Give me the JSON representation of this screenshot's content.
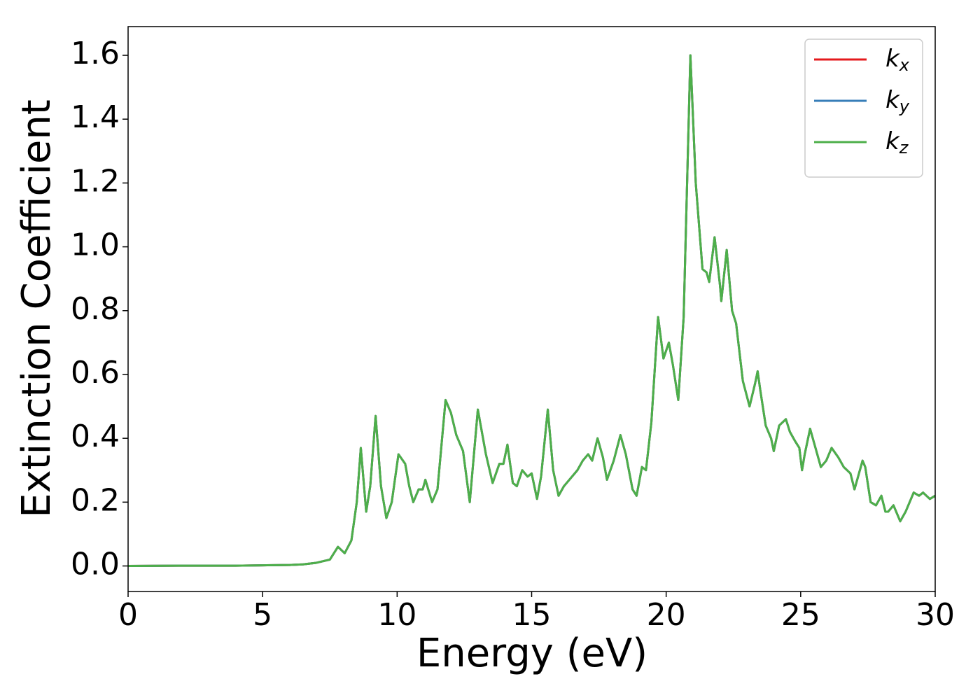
{
  "chart_data": {
    "type": "line",
    "x_label": "Energy (eV)",
    "y_label": "Extinction Coefficient",
    "x": [
      0,
      2,
      4,
      5,
      6,
      6.5,
      7,
      7.5,
      7.8,
      8.05,
      8.3,
      8.5,
      8.65,
      8.85,
      9.0,
      9.2,
      9.4,
      9.6,
      9.8,
      10.05,
      10.3,
      10.45,
      10.6,
      10.8,
      10.95,
      11.05,
      11.3,
      11.5,
      11.8,
      12.0,
      12.2,
      12.45,
      12.7,
      13.0,
      13.3,
      13.55,
      13.8,
      13.95,
      14.1,
      14.3,
      14.45,
      14.65,
      14.85,
      15.0,
      15.2,
      15.35,
      15.6,
      15.8,
      16.0,
      16.2,
      16.4,
      16.7,
      16.9,
      17.1,
      17.25,
      17.45,
      17.65,
      17.8,
      18.05,
      18.3,
      18.5,
      18.75,
      18.9,
      19.1,
      19.25,
      19.45,
      19.7,
      19.9,
      20.1,
      20.25,
      20.45,
      20.65,
      20.9,
      21.1,
      21.35,
      21.5,
      21.6,
      21.8,
      22.0,
      22.05,
      22.25,
      22.45,
      22.6,
      22.85,
      23.1,
      23.3,
      23.4,
      23.5,
      23.7,
      23.9,
      24.0,
      24.2,
      24.45,
      24.6,
      24.8,
      24.95,
      25.05,
      25.15,
      25.35,
      25.55,
      25.75,
      25.95,
      26.15,
      26.4,
      26.6,
      26.85,
      27.0,
      27.3,
      27.4,
      27.6,
      27.8,
      28.0,
      28.15,
      28.25,
      28.45,
      28.7,
      28.9,
      29.2,
      29.4,
      29.55,
      29.8,
      30
    ],
    "series": [
      {
        "name": "kx",
        "color": "#e41a1c",
        "values": [
          0,
          0.001,
          0.001,
          0.002,
          0.003,
          0.005,
          0.01,
          0.02,
          0.06,
          0.04,
          0.08,
          0.2,
          0.37,
          0.17,
          0.25,
          0.47,
          0.25,
          0.15,
          0.2,
          0.35,
          0.32,
          0.25,
          0.2,
          0.24,
          0.24,
          0.27,
          0.2,
          0.24,
          0.52,
          0.48,
          0.41,
          0.36,
          0.2,
          0.49,
          0.35,
          0.26,
          0.32,
          0.32,
          0.38,
          0.26,
          0.25,
          0.3,
          0.28,
          0.29,
          0.21,
          0.28,
          0.49,
          0.3,
          0.22,
          0.25,
          0.27,
          0.3,
          0.33,
          0.35,
          0.33,
          0.4,
          0.34,
          0.27,
          0.33,
          0.41,
          0.35,
          0.24,
          0.22,
          0.31,
          0.3,
          0.45,
          0.78,
          0.65,
          0.7,
          0.63,
          0.52,
          0.78,
          1.6,
          1.2,
          0.93,
          0.92,
          0.89,
          1.03,
          0.88,
          0.83,
          0.99,
          0.8,
          0.76,
          0.58,
          0.5,
          0.57,
          0.61,
          0.55,
          0.44,
          0.4,
          0.36,
          0.44,
          0.46,
          0.42,
          0.39,
          0.37,
          0.3,
          0.35,
          0.43,
          0.37,
          0.31,
          0.33,
          0.37,
          0.34,
          0.31,
          0.29,
          0.24,
          0.33,
          0.31,
          0.2,
          0.19,
          0.22,
          0.17,
          0.17,
          0.19,
          0.14,
          0.17,
          0.23,
          0.22,
          0.23,
          0.21,
          0.22
        ]
      },
      {
        "name": "ky",
        "color": "#377eb8",
        "values": [
          0,
          0.001,
          0.001,
          0.002,
          0.003,
          0.005,
          0.01,
          0.02,
          0.06,
          0.04,
          0.08,
          0.2,
          0.37,
          0.17,
          0.25,
          0.47,
          0.25,
          0.15,
          0.2,
          0.35,
          0.32,
          0.25,
          0.2,
          0.24,
          0.24,
          0.27,
          0.2,
          0.24,
          0.52,
          0.48,
          0.41,
          0.36,
          0.2,
          0.49,
          0.35,
          0.26,
          0.32,
          0.32,
          0.38,
          0.26,
          0.25,
          0.3,
          0.28,
          0.29,
          0.21,
          0.28,
          0.49,
          0.3,
          0.22,
          0.25,
          0.27,
          0.3,
          0.33,
          0.35,
          0.33,
          0.4,
          0.34,
          0.27,
          0.33,
          0.41,
          0.35,
          0.24,
          0.22,
          0.31,
          0.3,
          0.45,
          0.78,
          0.65,
          0.7,
          0.63,
          0.52,
          0.78,
          1.6,
          1.2,
          0.93,
          0.92,
          0.89,
          1.03,
          0.88,
          0.83,
          0.99,
          0.8,
          0.76,
          0.58,
          0.5,
          0.57,
          0.61,
          0.55,
          0.44,
          0.4,
          0.36,
          0.44,
          0.46,
          0.42,
          0.39,
          0.37,
          0.3,
          0.35,
          0.43,
          0.37,
          0.31,
          0.33,
          0.37,
          0.34,
          0.31,
          0.29,
          0.24,
          0.33,
          0.31,
          0.2,
          0.19,
          0.22,
          0.17,
          0.17,
          0.19,
          0.14,
          0.17,
          0.23,
          0.22,
          0.23,
          0.21,
          0.22
        ]
      },
      {
        "name": "kz",
        "color": "#4daf4a",
        "values": [
          0,
          0.001,
          0.001,
          0.002,
          0.003,
          0.005,
          0.01,
          0.02,
          0.06,
          0.04,
          0.08,
          0.2,
          0.37,
          0.17,
          0.25,
          0.47,
          0.25,
          0.15,
          0.2,
          0.35,
          0.32,
          0.25,
          0.2,
          0.24,
          0.24,
          0.27,
          0.2,
          0.24,
          0.52,
          0.48,
          0.41,
          0.36,
          0.2,
          0.49,
          0.35,
          0.26,
          0.32,
          0.32,
          0.38,
          0.26,
          0.25,
          0.3,
          0.28,
          0.29,
          0.21,
          0.28,
          0.49,
          0.3,
          0.22,
          0.25,
          0.27,
          0.3,
          0.33,
          0.35,
          0.33,
          0.4,
          0.34,
          0.27,
          0.33,
          0.41,
          0.35,
          0.24,
          0.22,
          0.31,
          0.3,
          0.45,
          0.78,
          0.65,
          0.7,
          0.63,
          0.52,
          0.78,
          1.6,
          1.2,
          0.93,
          0.92,
          0.89,
          1.03,
          0.88,
          0.83,
          0.99,
          0.8,
          0.76,
          0.58,
          0.5,
          0.57,
          0.61,
          0.55,
          0.44,
          0.4,
          0.36,
          0.44,
          0.46,
          0.42,
          0.39,
          0.37,
          0.3,
          0.35,
          0.43,
          0.37,
          0.31,
          0.33,
          0.37,
          0.34,
          0.31,
          0.29,
          0.24,
          0.33,
          0.31,
          0.2,
          0.19,
          0.22,
          0.17,
          0.17,
          0.19,
          0.14,
          0.17,
          0.23,
          0.22,
          0.23,
          0.21,
          0.22
        ]
      }
    ],
    "xlim": [
      0,
      30
    ],
    "xticks": [
      0,
      5,
      10,
      15,
      20,
      25,
      30
    ],
    "ylim": [
      -0.08,
      1.69
    ],
    "yticks": [
      {
        "value": 0,
        "label": "0.0"
      },
      0.2,
      0.4,
      0.6,
      0.8,
      {
        "value": 1,
        "label": "1.0"
      },
      1.2,
      1.4,
      1.6
    ],
    "grid": false,
    "legend": "upper right"
  }
}
